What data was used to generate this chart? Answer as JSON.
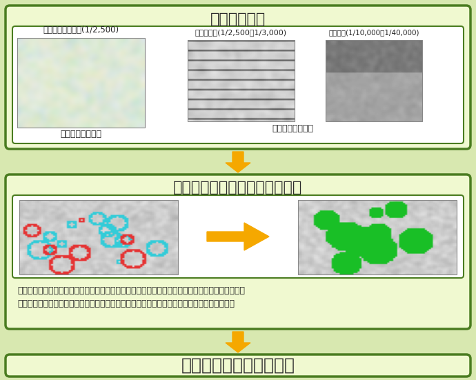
{
  "bg_color": "#f5f5dc",
  "outer_bg": "#f0f0f0",
  "box1_bg": "#f0f9d0",
  "box1_border": "#4a7c20",
  "box2_bg": "#f0f9d0",
  "box2_border": "#4a7c20",
  "box3_bg": "#f0f9d0",
  "box3_border": "#4a7c20",
  "arrow_color": "#f5a800",
  "title1": "基礎資料収集",
  "title2": "盛土造成地の位置・規模の把握",
  "title3": "大規模盛土造成地の抽出",
  "label1": "現況地形図データ(1/2,500)",
  "label2": "旧版地形図(1/2,500・1/3,000)",
  "label3": "空中写真(1/10,000〜1/40,000)",
  "sublabel1": "宅地造成後の地形",
  "sublabel2": "宅地造成前の地形",
  "desc_text": "マップの作成は、宅地造成前の写真と宅地造成後の地形データの新旧のデータをコンピュータ上で\n重ね合わせ、造成後の高さや勾配、面積がガイドラインで該当するものに対して抽出します。",
  "title_fontsize": 16,
  "label_fontsize": 9,
  "desc_fontsize": 9,
  "title3_fontsize": 18
}
